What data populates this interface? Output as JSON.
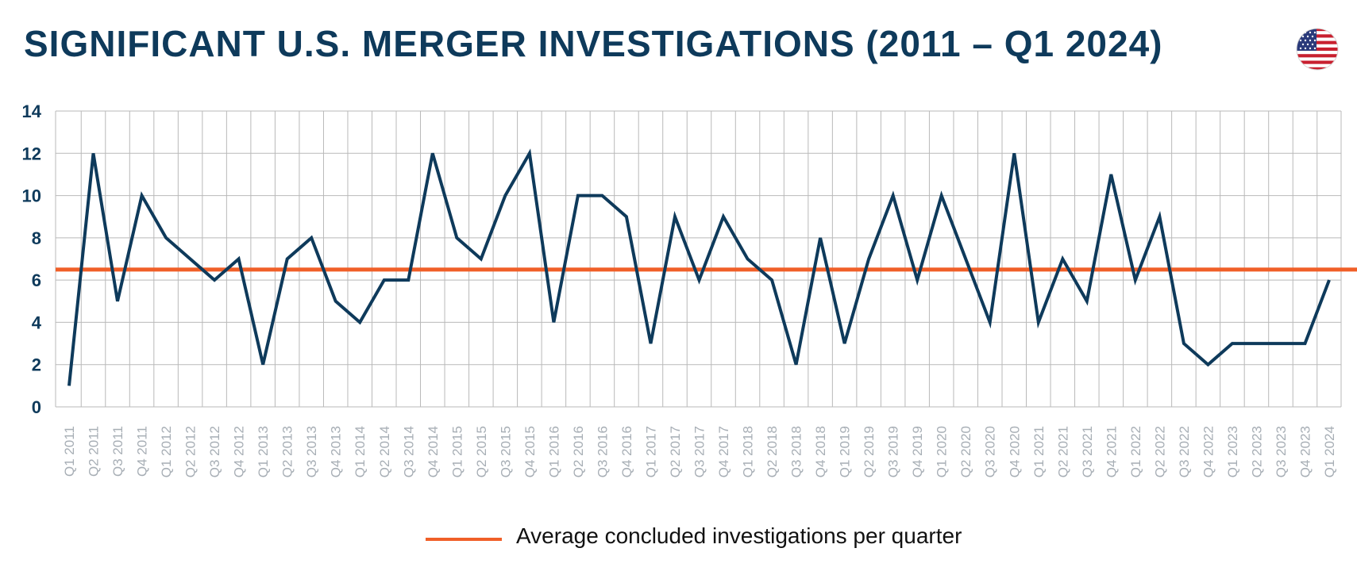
{
  "title": "SIGNIFICANT U.S. MERGER INVESTIGATIONS (2011 – Q1 2024)",
  "flag_icon": "us-flag-icon",
  "colors": {
    "title": "#0e3a5b",
    "series": "#0e3a5b",
    "average": "#f05f28",
    "grid": "#b9b9b9",
    "tick_x": "#a7aeb5",
    "tick_y": "#0e3a5b"
  },
  "legend": {
    "label": "Average concluded investigations per quarter"
  },
  "chart_data": {
    "type": "line",
    "title": "SIGNIFICANT U.S. MERGER INVESTIGATIONS (2011 – Q1 2024)",
    "xlabel": "",
    "ylabel": "",
    "ylim": [
      0,
      14
    ],
    "yticks": [
      0,
      2,
      4,
      6,
      8,
      10,
      12,
      14
    ],
    "grid": true,
    "legend_position": "bottom-center",
    "categories": [
      "Q1 2011",
      "Q2 2011",
      "Q3 2011",
      "Q4 2011",
      "Q1 2012",
      "Q2 2012",
      "Q3 2012",
      "Q4 2012",
      "Q1 2013",
      "Q2 2013",
      "Q3 2013",
      "Q4 2013",
      "Q1 2014",
      "Q2 2014",
      "Q3 2014",
      "Q4 2014",
      "Q1 2015",
      "Q2 2015",
      "Q3 2015",
      "Q4 2015",
      "Q1 2016",
      "Q2 2016",
      "Q3 2016",
      "Q4 2016",
      "Q1 2017",
      "Q2 2017",
      "Q3 2017",
      "Q4 2017",
      "Q1 2018",
      "Q2 2018",
      "Q3 2018",
      "Q4 2018",
      "Q1 2019",
      "Q2 2019",
      "Q3 2019",
      "Q4 2019",
      "Q1 2020",
      "Q2 2020",
      "Q3 2020",
      "Q4 2020",
      "Q1 2021",
      "Q2 2021",
      "Q3 2021",
      "Q4 2021",
      "Q1 2022",
      "Q2 2022",
      "Q3 2022",
      "Q4 2022",
      "Q1 2023",
      "Q2 2023",
      "Q3 2023",
      "Q4 2023",
      "Q1 2024"
    ],
    "series": [
      {
        "values": [
          1,
          12,
          5,
          10,
          8,
          7,
          6,
          7,
          2,
          7,
          8,
          5,
          4,
          6,
          6,
          12,
          8,
          7,
          10,
          12,
          4,
          10,
          10,
          9,
          3,
          9,
          6,
          9,
          7,
          6,
          2,
          8,
          3,
          7,
          10,
          6,
          10,
          7,
          4,
          12,
          4,
          7,
          5,
          11,
          6,
          9,
          3,
          2,
          3,
          3,
          3,
          3,
          6
        ]
      }
    ],
    "reference_lines": [
      {
        "name": "Average concluded investigations per quarter",
        "y": 6.5
      }
    ]
  }
}
